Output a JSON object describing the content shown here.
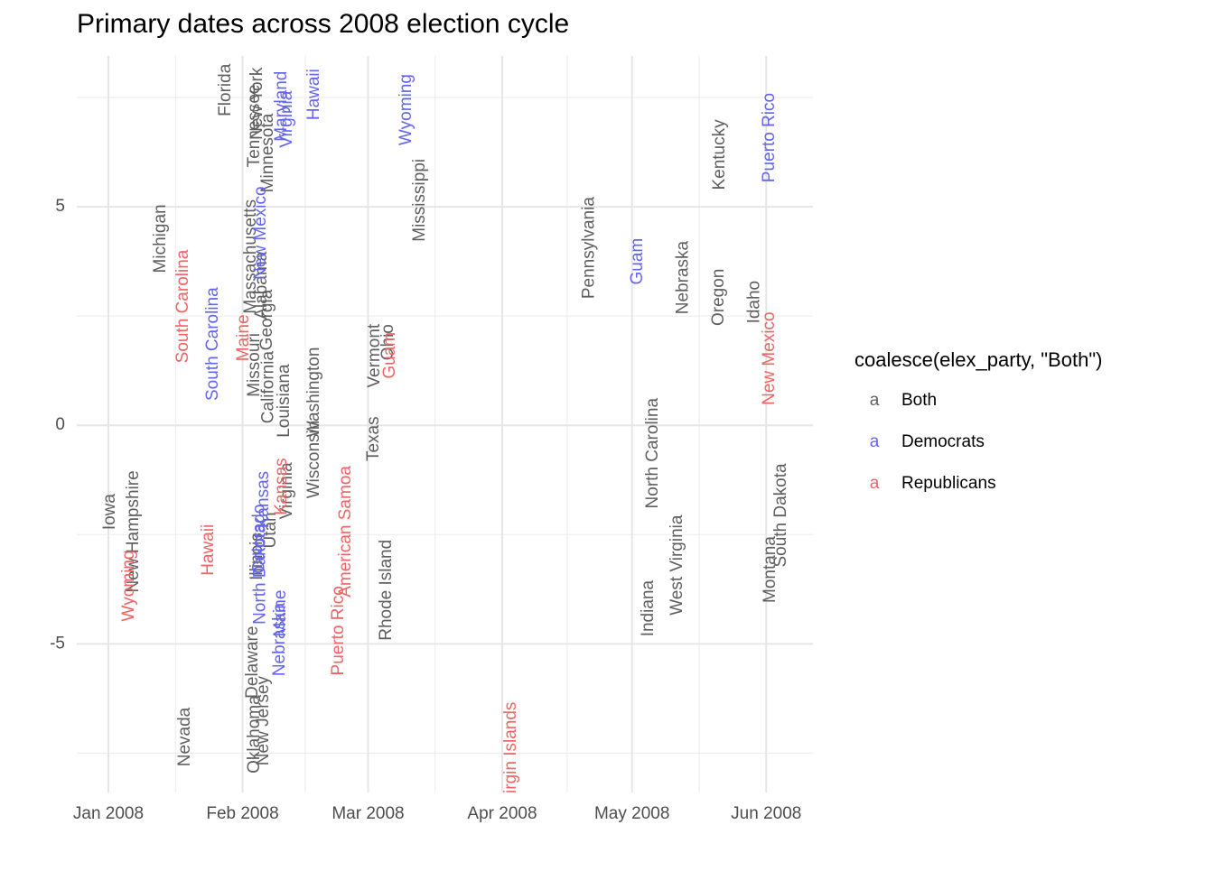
{
  "chart_data": {
    "type": "text-scatter",
    "title": "Primary dates across 2008 election cycle",
    "legend_title": "coalesce(elex_party, \"Both\")",
    "key_glyph": "a",
    "legend": "right",
    "grid": true,
    "xlim": [
      -7.3,
      162.8
    ],
    "xticks": [
      {
        "value": 0,
        "label": "Jan 2008"
      },
      {
        "value": 31,
        "label": "Feb 2008"
      },
      {
        "value": 60,
        "label": "Mar 2008"
      },
      {
        "value": 91,
        "label": "Apr 2008"
      },
      {
        "value": 121,
        "label": "May 2008"
      },
      {
        "value": 152,
        "label": "Jun 2008"
      }
    ],
    "ylim": [
      -8.4,
      8.45
    ],
    "yticks": [
      -5,
      0,
      5
    ],
    "series": [
      {
        "name": "Both",
        "color": "#5f5f5f",
        "labels": [
          "Iowa",
          "New Hampshire",
          "Michigan",
          "Nevada",
          "Florida",
          "Tennessee",
          "New York",
          "Minnesota",
          "Massachusetts",
          "Missouri",
          "Georgia",
          "California",
          "Alabama",
          "Delaware",
          "Oklahoma",
          "New Jersey",
          "Illinois",
          "Utah",
          "Louisiana",
          "Virginia",
          "Washington",
          "Wisconsin",
          "Vermont",
          "Ohio",
          "Texas",
          "Rhode Island",
          "Mississippi",
          "Pennsylvania",
          "North Carolina",
          "Indiana",
          "Nebraska",
          "West Virginia",
          "Kentucky",
          "Oregon",
          "Idaho",
          "Montana",
          "South Dakota"
        ],
        "x": [
          0.4,
          5.8,
          12.1,
          17.7,
          27.1,
          33.8,
          34.4,
          36.9,
          33.0,
          33.8,
          36.7,
          37.0,
          35.5,
          33.4,
          33.8,
          35.9,
          34.4,
          37.6,
          40.7,
          41.3,
          47.6,
          47.6,
          61.6,
          64.7,
          61.4,
          64.3,
          72.0,
          111.1,
          125.9,
          124.8,
          132.8,
          131.5,
          141.3,
          141.1,
          149.3,
          153.0,
          155.5
        ],
        "values": [
          -1.98,
          -2.43,
          4.27,
          -7.13,
          7.67,
          6.85,
          7.36,
          6.23,
          3.86,
          1.38,
          2.41,
          0.87,
          3.2,
          -5.42,
          -7.07,
          -6.76,
          -3.0,
          -2.4,
          0.56,
          -1.5,
          0.76,
          -0.78,
          1.59,
          1.9,
          -0.31,
          -3.77,
          5.15,
          4.06,
          -0.64,
          -4.19,
          3.38,
          -3.2,
          6.19,
          2.93,
          2.82,
          -3.3,
          -2.06
        ]
      },
      {
        "name": "Democrats",
        "color": "#6464f0",
        "labels": [
          "South Carolina",
          "New Mexico",
          "Colorado",
          "Kansas",
          "North Dakota",
          "Nebraska",
          "Maine",
          "Maryland",
          "Virginia",
          "Hawaii",
          "Wyoming",
          "Guam",
          "Puerto Rico"
        ],
        "x": [
          24.2,
          35.3,
          35.0,
          35.9,
          35.2,
          39.7,
          39.9,
          40.1,
          41.3,
          47.6,
          68.9,
          122.3,
          152.8
        ],
        "values": [
          1.86,
          4.4,
          -2.6,
          -1.7,
          -3.4,
          -4.9,
          -4.3,
          7.3,
          7.0,
          7.57,
          7.22,
          3.75,
          6.58
        ]
      },
      {
        "name": "Republicans",
        "color": "#f06464",
        "labels": [
          "Wyoming",
          "South Carolina",
          "Hawaii",
          "Maine",
          "Kansas",
          "Puerto Rico",
          "American Samoa",
          "Guam",
          "Virgin Islands",
          "New Mexico"
        ],
        "x": [
          4.8,
          17.3,
          23.2,
          31.3,
          40.1,
          53.2,
          54.9,
          65.1,
          93.1,
          152.8
        ],
        "values": [
          -3.67,
          2.72,
          -2.85,
          2.0,
          -1.4,
          -4.7,
          -2.43,
          1.6,
          -7.5,
          1.53
        ]
      }
    ]
  }
}
